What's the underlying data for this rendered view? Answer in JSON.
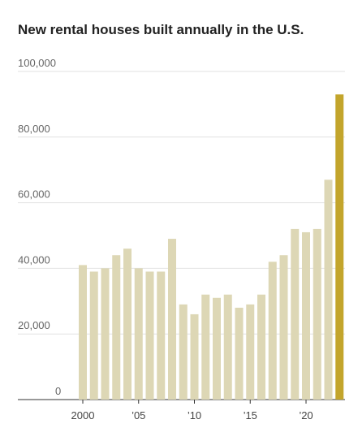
{
  "chart_data": {
    "type": "bar",
    "title": "New rental houses built annually in the U.S.",
    "categories": [
      "2000",
      null,
      null,
      null,
      null,
      "’05",
      null,
      null,
      null,
      null,
      "’10",
      null,
      null,
      null,
      null,
      "’15",
      null,
      null,
      null,
      null,
      "’20",
      null,
      null,
      null
    ],
    "values": [
      41000,
      39000,
      40000,
      44000,
      46000,
      40000,
      39000,
      39000,
      49000,
      29000,
      26000,
      32000,
      31000,
      32000,
      28000,
      29000,
      32000,
      42000,
      44000,
      52000,
      51000,
      52000,
      67000,
      93000
    ],
    "colors": [
      "#ddd7b5",
      "#ddd7b5",
      "#ddd7b5",
      "#ddd7b5",
      "#ddd7b5",
      "#ddd7b5",
      "#ddd7b5",
      "#ddd7b5",
      "#ddd7b5",
      "#ddd7b5",
      "#ddd7b5",
      "#ddd7b5",
      "#ddd7b5",
      "#ddd7b5",
      "#ddd7b5",
      "#ddd7b5",
      "#ddd7b5",
      "#ddd7b5",
      "#ddd7b5",
      "#ddd7b5",
      "#ddd7b5",
      "#ddd7b5",
      "#ddd7b5",
      "#c3a52c"
    ],
    "ylim": [
      0,
      100000
    ],
    "yticks": [
      0,
      {
        "value": 20000,
        "label": "20,000"
      },
      {
        "value": 40000,
        "label": "40,000"
      },
      {
        "value": 60000,
        "label": "60,000"
      },
      {
        "value": 80000,
        "label": "80,000"
      },
      {
        "value": 100000,
        "label": "100,000"
      }
    ],
    "grid": true
  }
}
